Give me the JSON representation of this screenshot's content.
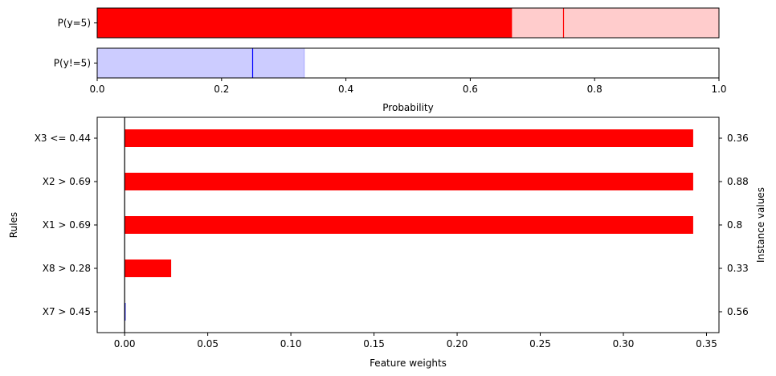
{
  "chart_data": [
    {
      "type": "bar",
      "orientation": "horizontal",
      "categories": [
        "P(y=5)"
      ],
      "series": [
        {
          "role": "probability",
          "values": [
            0.667
          ]
        },
        {
          "role": "uncertainty-interval",
          "values": [
            [
              0.667,
              1.0
            ]
          ]
        },
        {
          "role": "marker",
          "values": [
            0.75
          ]
        }
      ],
      "color": "#ff0000",
      "xlim": [
        0,
        1
      ],
      "xticks": [],
      "xlabel": ""
    },
    {
      "type": "bar",
      "orientation": "horizontal",
      "categories": [
        "P(y!=5)"
      ],
      "series": [
        {
          "role": "uncertainty-interval",
          "values": [
            [
              0.0,
              0.333
            ]
          ]
        },
        {
          "role": "marker",
          "values": [
            0.25
          ]
        }
      ],
      "color": "#0000ff",
      "xlim": [
        0,
        1
      ],
      "xticks": [
        "0.0",
        "0.2",
        "0.4",
        "0.6",
        "0.8",
        "1.0"
      ],
      "xlabel": "Probability"
    },
    {
      "type": "bar",
      "orientation": "horizontal",
      "categories": [
        "X3 <= 0.44",
        "X2 > 0.69",
        "X1 > 0.69",
        "X8 > 0.28",
        "X7 > 0.45"
      ],
      "values": [
        0.342,
        0.342,
        0.342,
        0.028,
        0.0003
      ],
      "bar_colors": [
        "#ff0000",
        "#ff0000",
        "#ff0000",
        "#ff0000",
        "#0000ff"
      ],
      "instance_values": [
        "0.36",
        "0.88",
        "0.8",
        "0.33",
        "0.56"
      ],
      "xlim": [
        -0.0165,
        0.3575
      ],
      "xticks": [
        "0.00",
        "0.05",
        "0.10",
        "0.15",
        "0.20",
        "0.25",
        "0.30",
        "0.35"
      ],
      "xlabel": "Feature weights",
      "ylabel": "Rules",
      "ylabel_right": "Instance values"
    }
  ]
}
